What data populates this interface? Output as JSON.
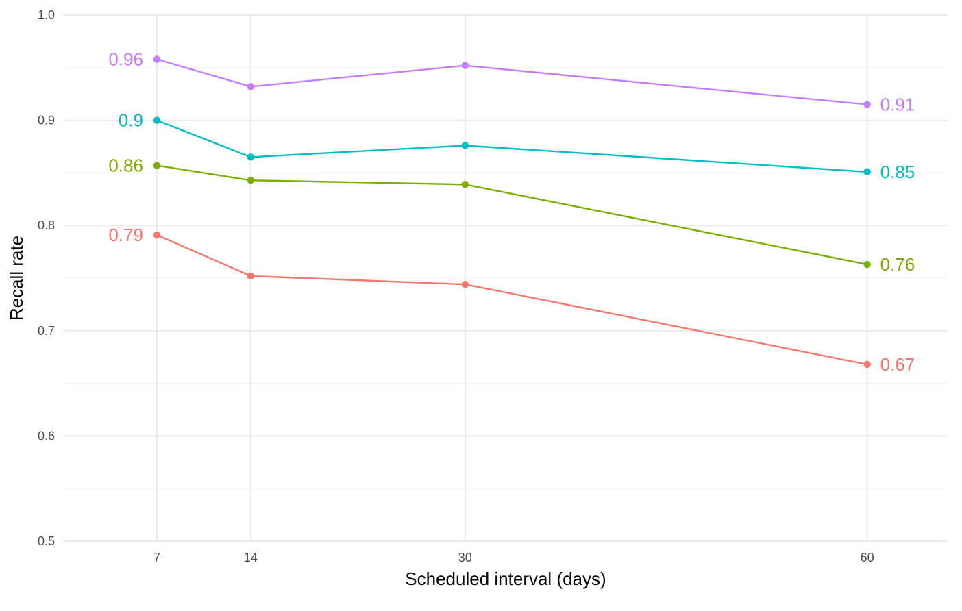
{
  "chart_data": {
    "type": "line",
    "title": "",
    "xlabel": "Scheduled interval (days)",
    "ylabel": "Recall rate",
    "x": [
      7,
      14,
      30,
      60
    ],
    "xlim": [
      0,
      66
    ],
    "ylim": [
      0.5,
      1.0
    ],
    "x_ticks": [
      7,
      14,
      30,
      60
    ],
    "x_tick_labels": [
      "7",
      "14",
      "30",
      "60"
    ],
    "y_ticks": [
      0.5,
      0.6,
      0.7,
      0.8,
      0.9,
      1.0
    ],
    "y_tick_labels": [
      "0.5",
      "0.6",
      "0.7",
      "0.8",
      "0.9",
      "1.0"
    ],
    "grid": true,
    "legend": "none",
    "series": [
      {
        "color": "#C77CFF",
        "values": [
          0.958,
          0.932,
          0.952,
          0.915
        ],
        "start_label": "0.96",
        "end_label": "0.91"
      },
      {
        "color": "#00BFC4",
        "values": [
          0.9,
          0.865,
          0.876,
          0.851
        ],
        "start_label": "0.9",
        "end_label": "0.85"
      },
      {
        "color": "#7CAE00",
        "values": [
          0.857,
          0.843,
          0.839,
          0.763
        ],
        "start_label": "0.86",
        "end_label": "0.76"
      },
      {
        "color": "#F8766D",
        "values": [
          0.791,
          0.752,
          0.744,
          0.668
        ],
        "start_label": "0.79",
        "end_label": "0.67"
      }
    ]
  }
}
